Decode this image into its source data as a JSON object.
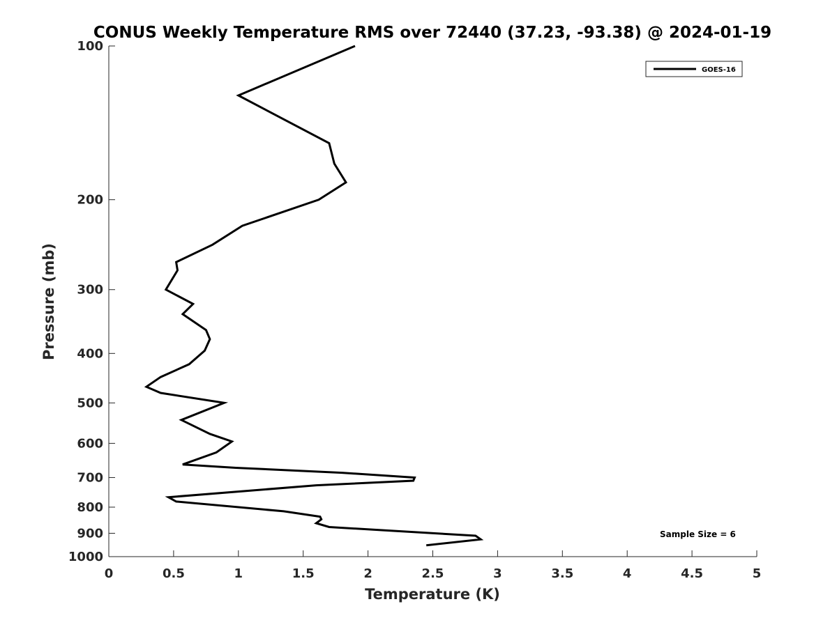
{
  "chart_data": {
    "type": "line",
    "title": "CONUS Weekly Temperature RMS over 72440 (37.23, -93.38) @ 2024-01-19",
    "xlabel": "Temperature (K)",
    "ylabel": "Pressure (mb)",
    "xlim": [
      0,
      5
    ],
    "ylim": [
      100,
      1000
    ],
    "y_scale": "log",
    "y_reversed": true,
    "x_ticks": [
      "0",
      "0.5",
      "1",
      "1.5",
      "2",
      "2.5",
      "3",
      "3.5",
      "4",
      "4.5",
      "5"
    ],
    "y_ticks": [
      "100",
      "200",
      "300",
      "400",
      "500",
      "600",
      "700",
      "800",
      "900",
      "1000"
    ],
    "grid": false,
    "legend_position": "top-right",
    "series": [
      {
        "name": "GOES-16",
        "color": "#000000",
        "points": [
          [
            1.9,
            100
          ],
          [
            1.0,
            125
          ],
          [
            1.7,
            155
          ],
          [
            1.74,
            170
          ],
          [
            1.83,
            185
          ],
          [
            1.62,
            200
          ],
          [
            1.03,
            225
          ],
          [
            0.8,
            245
          ],
          [
            0.52,
            265
          ],
          [
            0.53,
            275
          ],
          [
            0.44,
            300
          ],
          [
            0.65,
            320
          ],
          [
            0.57,
            335
          ],
          [
            0.75,
            360
          ],
          [
            0.78,
            375
          ],
          [
            0.74,
            395
          ],
          [
            0.62,
            420
          ],
          [
            0.4,
            445
          ],
          [
            0.29,
            465
          ],
          [
            0.4,
            478
          ],
          [
            0.89,
            500
          ],
          [
            0.56,
            540
          ],
          [
            0.78,
            575
          ],
          [
            0.95,
            595
          ],
          [
            0.83,
            625
          ],
          [
            0.57,
            660
          ],
          [
            0.98,
            670
          ],
          [
            1.8,
            685
          ],
          [
            2.36,
            700
          ],
          [
            2.35,
            710
          ],
          [
            1.6,
            725
          ],
          [
            0.46,
            765
          ],
          [
            0.52,
            780
          ],
          [
            1.35,
            815
          ],
          [
            1.63,
            835
          ],
          [
            1.64,
            845
          ],
          [
            1.6,
            860
          ],
          [
            1.7,
            875
          ],
          [
            2.83,
            910
          ],
          [
            2.87,
            925
          ],
          [
            2.45,
            950
          ]
        ]
      }
    ],
    "annotations": [
      "Sample Size = 6"
    ]
  }
}
